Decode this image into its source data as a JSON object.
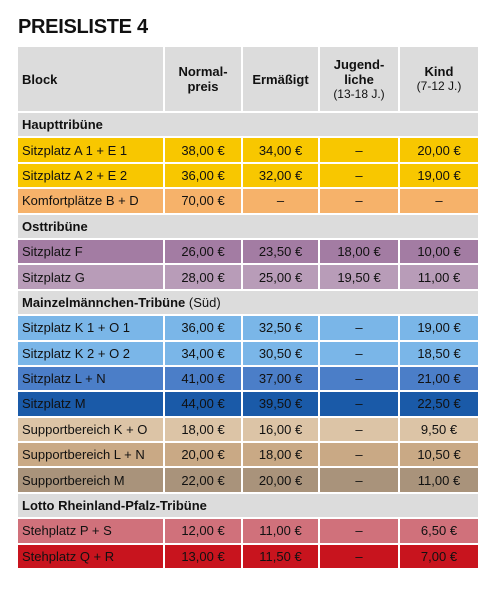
{
  "title": "PREISLISTE 4",
  "table": {
    "header": [
      {
        "lines": [
          "Block"
        ]
      },
      {
        "lines": [
          "Normal-",
          "preis"
        ]
      },
      {
        "lines": [
          "Ermäßigt"
        ]
      },
      {
        "lines": [
          "Jugend-",
          "liche"
        ],
        "sub": "(13-18 J.)"
      },
      {
        "lines": [
          "Kind"
        ],
        "sub": "(7-12 J.)"
      }
    ],
    "sections": [
      {
        "title": "Haupttribüne",
        "rows": [
          [
            "Sitzplatz A 1 + E 1",
            "38,00 €",
            "34,00 €",
            "–",
            "20,00 €"
          ],
          [
            "Sitzplatz A 2 + E 2",
            "36,00 €",
            "32,00 €",
            "–",
            "19,00 €"
          ],
          [
            "Komfortplätze B + D",
            "70,00 €",
            "–",
            "–",
            "–"
          ]
        ]
      },
      {
        "title": "Osttribüne",
        "rows": [
          [
            "Sitzplatz F",
            "26,00 €",
            "23,50 €",
            "18,00 €",
            "10,00 €"
          ],
          [
            "Sitzplatz G",
            "28,00 €",
            "25,00 €",
            "19,50 €",
            "11,00 €"
          ]
        ]
      },
      {
        "title": "Mainzelmännchen-Tribüne",
        "note": "(Süd)",
        "rows": [
          [
            "Sitzplatz K 1 + O 1",
            "36,00 €",
            "32,50 €",
            "–",
            "19,00 €"
          ],
          [
            "Sitzplatz K 2 + O 2",
            "34,00 €",
            "30,50 €",
            "–",
            "18,50 €"
          ],
          [
            "Sitzplatz L + N",
            "41,00 €",
            "37,00 €",
            "–",
            "21,00 €"
          ],
          [
            "Sitzplatz M",
            "44,00 €",
            "39,50 €",
            "–",
            "22,50 €"
          ],
          [
            "Supportbereich K + O",
            "18,00 €",
            "16,00 €",
            "–",
            "9,50 €"
          ],
          [
            "Supportbereich L + N",
            "20,00 €",
            "18,00 €",
            "–",
            "10,50 €"
          ],
          [
            "Supportbereich M",
            "22,00 €",
            "20,00 €",
            "–",
            "11,00 €"
          ]
        ]
      },
      {
        "title": "Lotto Rheinland-Pfalz-Tribüne",
        "rows": [
          [
            "Stehplatz P + S",
            "12,00 €",
            "11,00 €",
            "–",
            "6,50 €"
          ],
          [
            "Stehplatz Q + R",
            "13,00 €",
            "11,50 €",
            "–",
            "7,00 €"
          ]
        ]
      }
    ]
  }
}
